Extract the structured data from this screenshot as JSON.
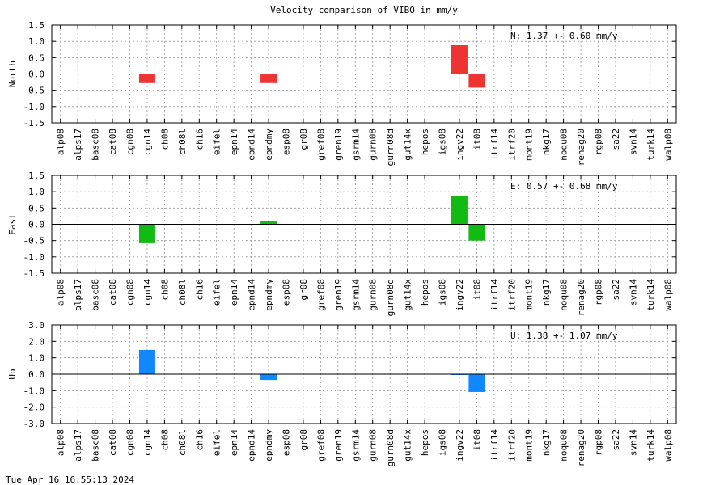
{
  "title": "Velocity comparison of VIBO in mm/y",
  "footer": "Tue Apr 16 16:55:13 2024",
  "chart_data": [
    {
      "type": "bar",
      "title": "",
      "xlabel": "",
      "ylabel": "North",
      "ylim": [
        -1.5,
        1.5
      ],
      "yticks": [
        "1.5",
        "1.0",
        "0.5",
        "0.0",
        "-0.5",
        "-1.0",
        "-1.5"
      ],
      "grid": true,
      "color": "#ee3333",
      "annotation": "N:   1.37 +-  0.60 mm/y",
      "categories": [
        "alp08",
        "alps17",
        "basc08",
        "cat08",
        "cgn08",
        "cgn14",
        "ch08",
        "ch08l",
        "ch16",
        "eifel",
        "epn14",
        "epnd14",
        "epndmy",
        "esp08",
        "gr08",
        "gref08",
        "gren19",
        "gsrm14",
        "gurn08",
        "gurn08d",
        "gut14x",
        "hepos",
        "igs08",
        "ingv22",
        "it08",
        "itrf14",
        "itrf20",
        "mont19",
        "nkg17",
        "noqu08",
        "renag20",
        "rgp08",
        "sa22",
        "svn14",
        "turk14",
        "walp08"
      ],
      "values": [
        0,
        0,
        0,
        0,
        0,
        -0.28,
        0,
        0,
        0,
        0,
        0,
        0,
        -0.28,
        0,
        0,
        0,
        0,
        0,
        0,
        0,
        0,
        0,
        0,
        0.88,
        -0.42,
        0,
        0,
        0,
        0,
        0,
        0,
        0,
        0,
        0,
        0,
        0
      ]
    },
    {
      "type": "bar",
      "title": "",
      "xlabel": "",
      "ylabel": "East",
      "ylim": [
        -1.5,
        1.5
      ],
      "yticks": [
        "1.5",
        "1.0",
        "0.5",
        "0.0",
        "-0.5",
        "-1.0",
        "-1.5"
      ],
      "grid": true,
      "color": "#11bb11",
      "annotation": "E:   0.57 +-  0.68 mm/y",
      "categories": [
        "alp08",
        "alps17",
        "basc08",
        "cat08",
        "cgn08",
        "cgn14",
        "ch08",
        "ch08l",
        "ch16",
        "eifel",
        "epn14",
        "epnd14",
        "epndmy",
        "esp08",
        "gr08",
        "gref08",
        "gren19",
        "gsrm14",
        "gurn08",
        "gurn08d",
        "gut14x",
        "hepos",
        "igs08",
        "ingv22",
        "it08",
        "itrf14",
        "itrf20",
        "mont19",
        "nkg17",
        "noqu08",
        "renag20",
        "rgp08",
        "sa22",
        "svn14",
        "turk14",
        "walp08"
      ],
      "values": [
        0,
        0,
        0,
        0,
        0,
        -0.58,
        0,
        0,
        0,
        0,
        0,
        0,
        0.1,
        0,
        0,
        0,
        0,
        0,
        0,
        0,
        0,
        0,
        0,
        0.88,
        -0.5,
        0,
        0,
        0,
        0,
        0,
        0,
        0,
        0,
        0,
        0,
        0
      ]
    },
    {
      "type": "bar",
      "title": "",
      "xlabel": "",
      "ylabel": "Up",
      "ylim": [
        -3.0,
        3.0
      ],
      "yticks": [
        "3.0",
        "2.0",
        "1.0",
        "0.0",
        "-1.0",
        "-2.0",
        "-3.0"
      ],
      "grid": true,
      "color": "#1188ff",
      "annotation": "U:   1.38 +-  1.07 mm/y",
      "categories": [
        "alp08",
        "alps17",
        "basc08",
        "cat08",
        "cgn08",
        "cgn14",
        "ch08",
        "ch08l",
        "ch16",
        "eifel",
        "epn14",
        "epnd14",
        "epndmy",
        "esp08",
        "gr08",
        "gref08",
        "gren19",
        "gsrm14",
        "gurn08",
        "gurn08d",
        "gut14x",
        "hepos",
        "igs08",
        "ingv22",
        "it08",
        "itrf14",
        "itrf20",
        "mont19",
        "nkg17",
        "noqu08",
        "renag20",
        "rgp08",
        "sa22",
        "svn14",
        "turk14",
        "walp08"
      ],
      "values": [
        0,
        0,
        0,
        0,
        0,
        1.48,
        0,
        0,
        0,
        0,
        0,
        0,
        -0.35,
        0,
        0,
        0,
        0,
        0,
        0,
        0,
        0,
        0,
        0,
        -0.05,
        -1.08,
        0,
        0,
        0,
        0,
        0,
        0,
        0,
        0,
        0,
        0,
        0
      ]
    }
  ]
}
